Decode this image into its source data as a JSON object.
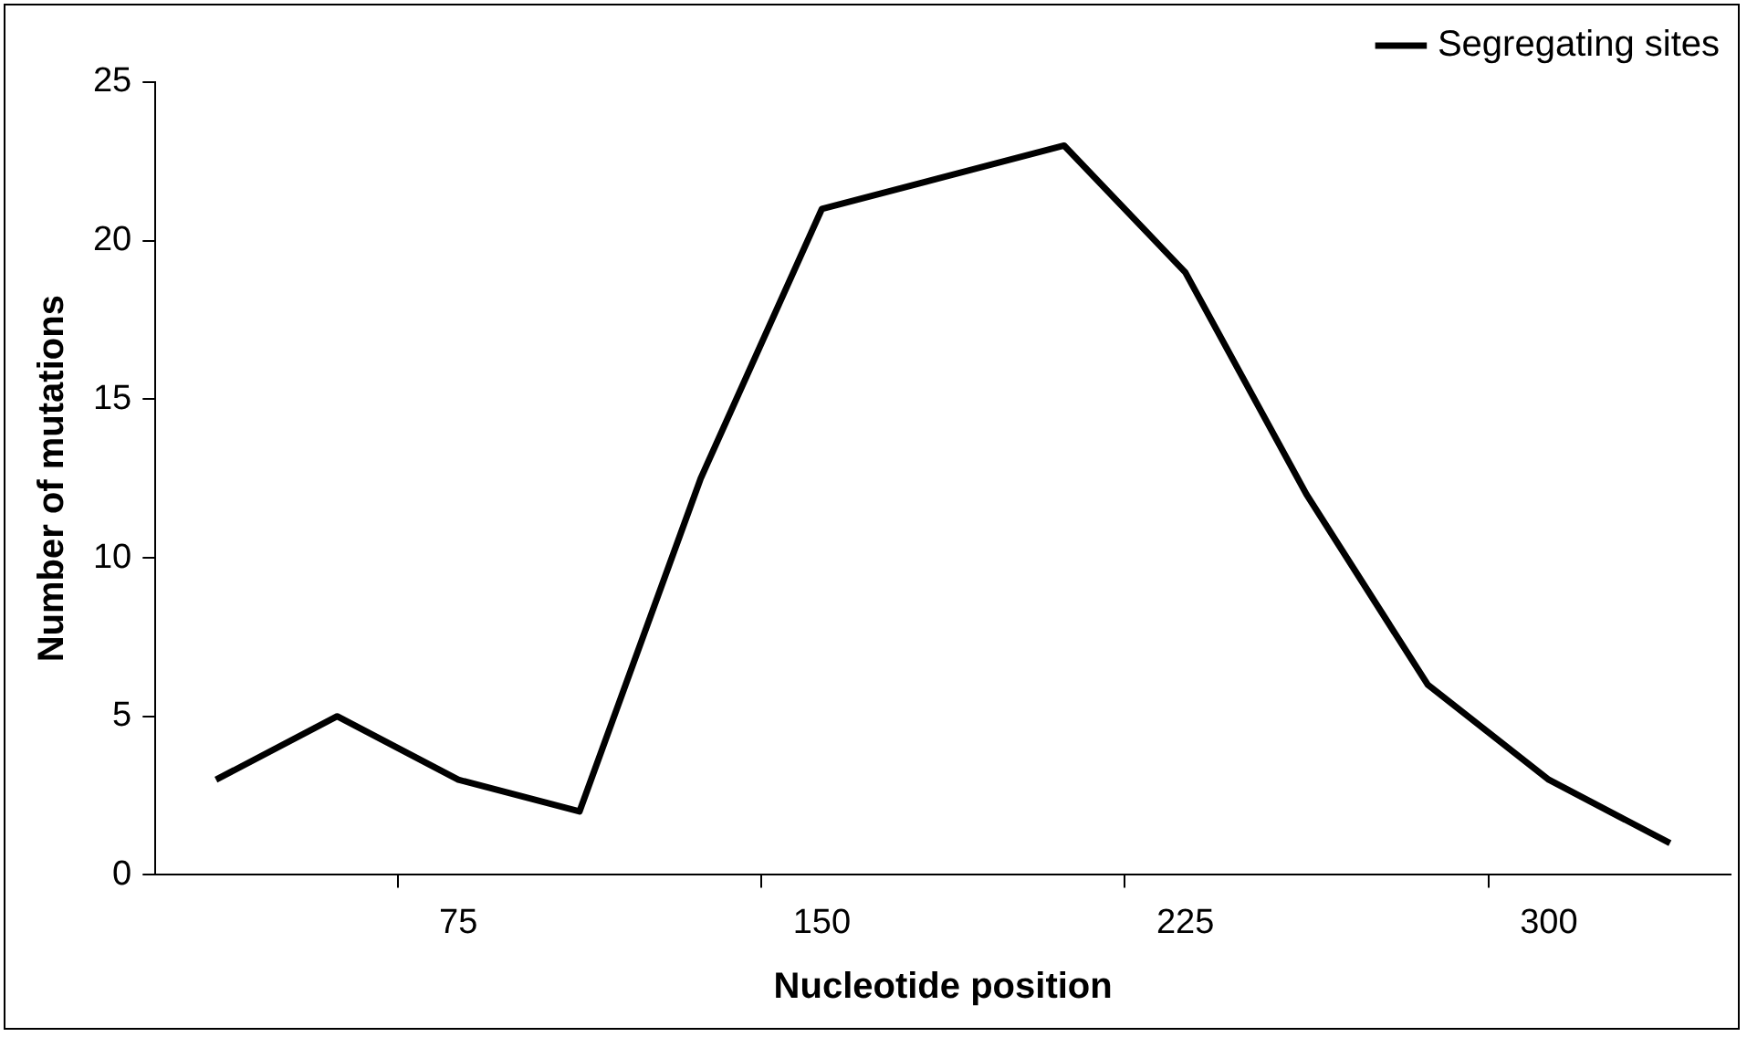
{
  "chart_data": {
    "type": "line",
    "xlabel": "Nucleotide position",
    "ylabel": "Number of mutations",
    "categories": [
      null,
      null,
      "75",
      null,
      null,
      "150",
      null,
      null,
      "225",
      null,
      null,
      "300",
      null
    ],
    "series": [
      {
        "name": "Segregating sites",
        "color": "#000000",
        "values": [
          3,
          5,
          3,
          2,
          12.5,
          21,
          22,
          23,
          19,
          12,
          6,
          3,
          1
        ]
      }
    ],
    "ylim": [
      0,
      25
    ],
    "yticks": [
      0,
      5,
      10,
      15,
      20,
      25
    ],
    "grid": false,
    "legend": "top right",
    "marker": "none",
    "line_style": "solid"
  }
}
